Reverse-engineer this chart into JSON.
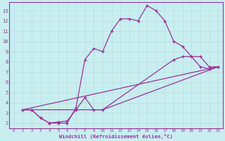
{
  "xlabel": "Windchill (Refroidissement éolien,°C)",
  "bg_color": "#c8eef0",
  "line_color": "#993399",
  "grid_color": "#b8dede",
  "xlim": [
    -0.5,
    23.5
  ],
  "ylim": [
    1.5,
    13.8
  ],
  "xticks": [
    0,
    1,
    2,
    3,
    4,
    5,
    6,
    7,
    8,
    9,
    10,
    11,
    12,
    13,
    14,
    15,
    16,
    17,
    18,
    19,
    20,
    21,
    22,
    23
  ],
  "yticks": [
    2,
    3,
    4,
    5,
    6,
    7,
    8,
    9,
    10,
    11,
    12,
    13
  ],
  "line1_x": [
    1,
    2,
    3,
    4,
    5,
    6,
    7,
    8,
    9,
    10,
    11,
    12,
    13,
    14,
    15,
    16,
    17,
    18,
    19,
    20,
    21,
    22,
    23
  ],
  "line1_y": [
    3.3,
    3.3,
    2.5,
    2.0,
    2.0,
    2.0,
    3.5,
    8.2,
    9.3,
    9.0,
    11.0,
    12.2,
    12.2,
    12.0,
    13.5,
    13.0,
    12.0,
    10.0,
    9.5,
    8.5,
    7.5,
    7.3,
    7.5
  ],
  "line2_x": [
    1,
    2,
    3,
    4,
    5,
    6,
    7,
    8,
    9,
    10,
    18,
    19,
    20,
    21,
    22,
    23
  ],
  "line2_y": [
    3.3,
    3.3,
    2.5,
    2.0,
    2.1,
    2.2,
    3.3,
    4.5,
    3.3,
    3.3,
    8.2,
    8.5,
    8.5,
    8.5,
    7.5,
    7.5
  ],
  "line3_x": [
    1,
    23
  ],
  "line3_y": [
    3.3,
    7.5
  ],
  "line4_x": [
    1,
    10,
    23
  ],
  "line4_y": [
    3.3,
    3.3,
    7.5
  ]
}
